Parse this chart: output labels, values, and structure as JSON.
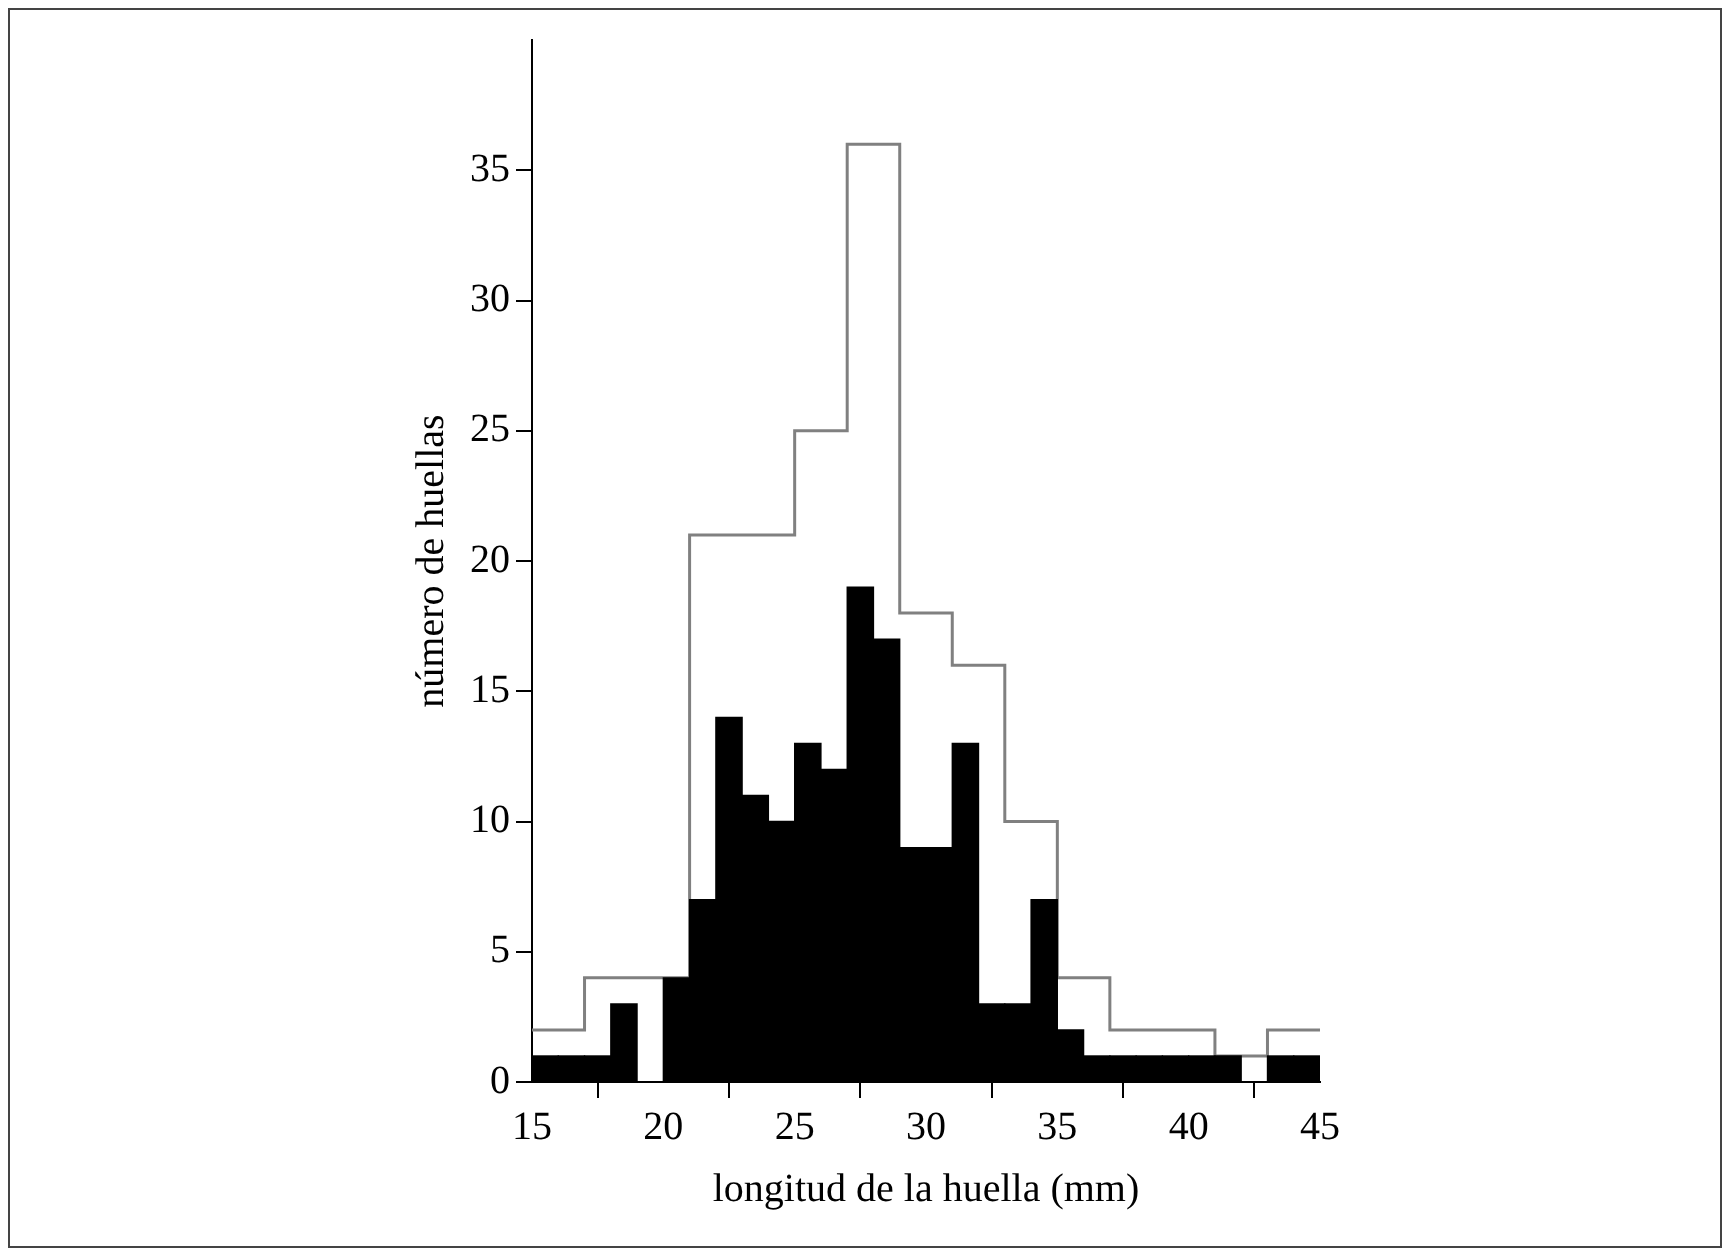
{
  "chart_data": {
    "type": "histogram",
    "xlabel": "longitud de la huella (mm)",
    "ylabel": "número de huellas",
    "bins": [
      15,
      16,
      17,
      18,
      19,
      20,
      21,
      22,
      23,
      24,
      25,
      26,
      27,
      28,
      29,
      30,
      31,
      32,
      33,
      34,
      35,
      36,
      37,
      38,
      39,
      40,
      41,
      42,
      43,
      44,
      45
    ],
    "series": [
      {
        "type": "step",
        "color": "#808080",
        "x": [
          15,
          17,
          19,
          21,
          23,
          25,
          27,
          29,
          31,
          33,
          35,
          37,
          39,
          41,
          43,
          45
        ],
        "values": [
          2,
          4,
          4,
          21,
          21,
          25,
          36,
          18,
          16,
          10,
          4,
          2,
          2,
          1,
          2,
          2
        ]
      },
      {
        "color": "#000000",
        "values": [
          1,
          1,
          1,
          3,
          0,
          4,
          7,
          14,
          11,
          10,
          13,
          12,
          19,
          17,
          9,
          9,
          13,
          3,
          3,
          7,
          2,
          1,
          1,
          1,
          1,
          1,
          1,
          0,
          1,
          1
        ]
      }
    ],
    "xlim": [
      15,
      45
    ],
    "xticks": [
      15,
      20,
      25,
      30,
      35,
      40,
      45
    ],
    "ylim": [
      0,
      40
    ],
    "yticks": [
      0,
      5,
      10,
      15,
      20,
      25,
      30,
      35
    ],
    "grid": false,
    "legend": false
  }
}
